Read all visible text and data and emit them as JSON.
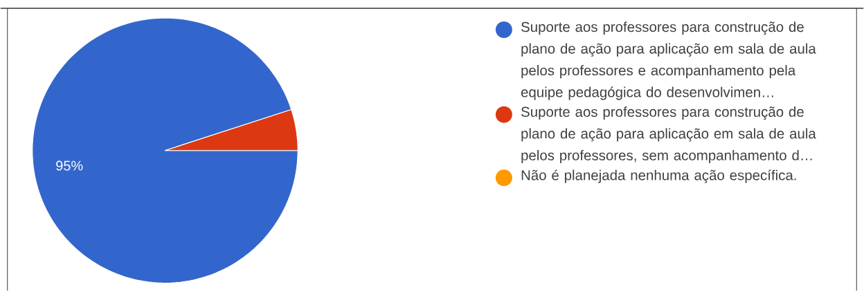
{
  "chart_data": {
    "type": "pie",
    "categories": [
      "Suporte aos professores para construção de plano de ação para aplicação em sala de aula pelos professores e acompanhamento pela equipe pedagógica do desenvolvimen…",
      "Suporte aos professores para construção de plano de ação para aplicação em sala de aula pelos professores, sem acompanhamento d…",
      "Não é planejada nenhuma ação específica."
    ],
    "values": [
      95,
      5,
      0
    ],
    "colors": [
      "#3366cc",
      "#dc3912",
      "#ff9900"
    ],
    "value_labels": [
      "95%",
      null,
      null
    ],
    "legend": "right"
  }
}
